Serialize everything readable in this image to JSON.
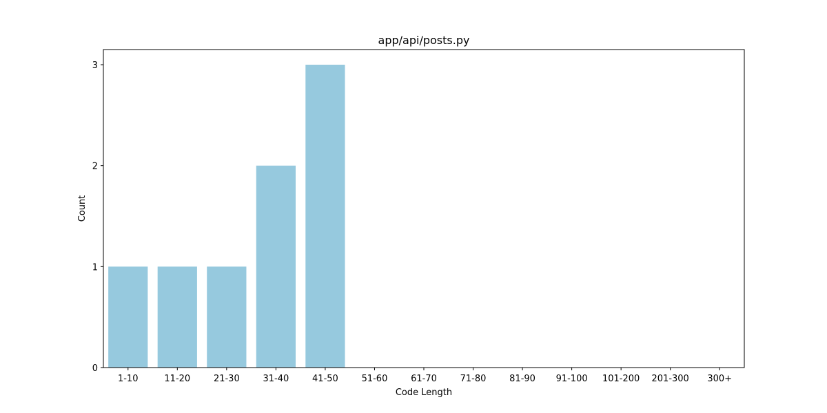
{
  "chart_data": {
    "type": "bar",
    "title": "app/api/posts.py",
    "xlabel": "Code Length",
    "ylabel": "Count",
    "categories": [
      "1-10",
      "11-20",
      "21-30",
      "31-40",
      "41-50",
      "51-60",
      "61-70",
      "71-80",
      "81-90",
      "91-100",
      "101-200",
      "201-300",
      "300+"
    ],
    "values": [
      1,
      1,
      1,
      2,
      3,
      0,
      0,
      0,
      0,
      0,
      0,
      0,
      0
    ],
    "ylim": [
      0,
      3.15
    ],
    "yticks": [
      0,
      1,
      2,
      3
    ],
    "grid": false,
    "colors": {
      "bar": "#96c9de",
      "axis": "#000000"
    }
  }
}
